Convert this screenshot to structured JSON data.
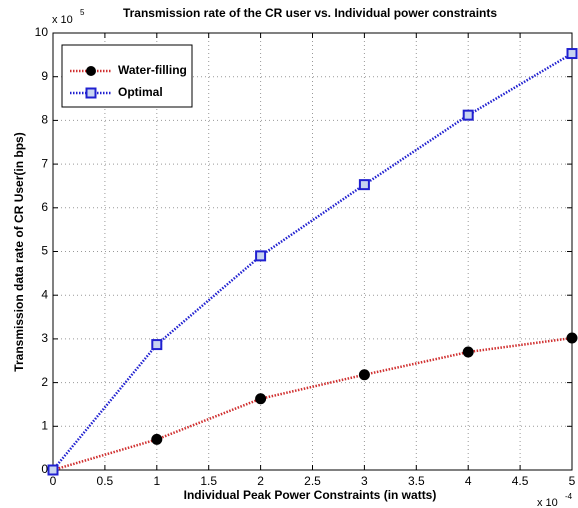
{
  "chart_data": {
    "type": "line",
    "title": "Transmission rate of the CR user vs. Individual power constraints",
    "x_label": "Individual Peak Power Constraints (in watts)",
    "y_label": "Transmission data rate of CR User(in bps)",
    "x_multiplier": {
      "base": "x 10",
      "exponent": "-4"
    },
    "y_multiplier": {
      "base": "x 10",
      "exponent": "5"
    },
    "x": [
      0,
      1,
      2,
      3,
      4,
      5
    ],
    "series": [
      {
        "name": "Water-filling",
        "color": "#d03030",
        "marker": "circle",
        "marker_color": "#000000",
        "values": [
          0,
          0.7,
          1.63,
          2.18,
          2.7,
          3.02
        ]
      },
      {
        "name": "Optimal",
        "color": "#2020d0",
        "marker": "square",
        "marker_color": "#2020d0",
        "values": [
          0,
          2.87,
          4.9,
          6.53,
          8.12,
          9.53
        ]
      }
    ],
    "xlim": [
      0,
      5
    ],
    "ylim": [
      0,
      10
    ],
    "xticks": [
      0,
      0.5,
      1,
      1.5,
      2,
      2.5,
      3,
      3.5,
      4,
      4.5,
      5
    ],
    "yticks": [
      0,
      1,
      2,
      3,
      4,
      5,
      6,
      7,
      8,
      9,
      10
    ],
    "grid": true,
    "legend_position": "upper left"
  }
}
